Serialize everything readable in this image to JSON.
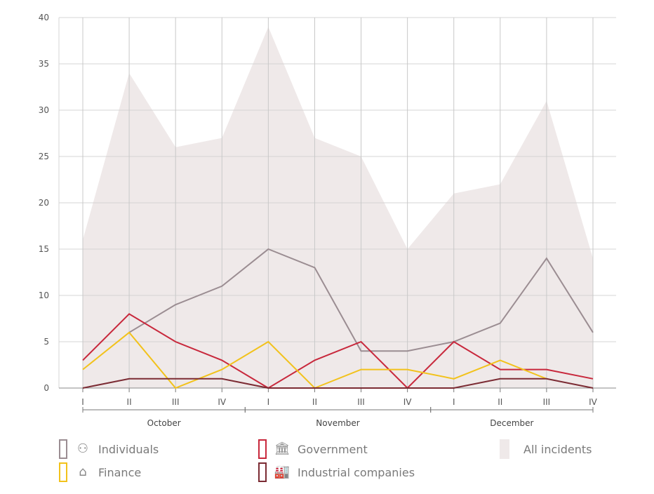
{
  "chart_data": {
    "type": "line",
    "title": "",
    "xlabel": "",
    "ylabel": "",
    "ylim": [
      0,
      40
    ],
    "yticks": [
      0,
      5,
      10,
      15,
      20,
      25,
      30,
      35,
      40
    ],
    "grid": true,
    "categories": [
      "I",
      "II",
      "III",
      "IV",
      "I",
      "II",
      "III",
      "IV",
      "I",
      "II",
      "III",
      "IV"
    ],
    "groups": [
      {
        "label": "October",
        "start": 0,
        "end": 3
      },
      {
        "label": "November",
        "start": 4,
        "end": 7
      },
      {
        "label": "December",
        "start": 8,
        "end": 11
      }
    ],
    "legend_position": "bottom",
    "series": [
      {
        "name": "All incidents",
        "kind": "area",
        "color": "#efe9e9",
        "values": [
          16,
          34,
          26,
          27,
          39,
          27,
          25,
          15,
          21,
          22,
          31,
          14
        ]
      },
      {
        "name": "Individuals",
        "kind": "line",
        "color": "#9b8d92",
        "icon": "people-network-icon",
        "values": [
          null,
          6,
          9,
          11,
          15,
          13,
          4,
          4,
          5,
          7,
          14,
          6
        ]
      },
      {
        "name": "Government",
        "kind": "line",
        "color": "#c8283c",
        "icon": "government-building-icon",
        "values": [
          3,
          8,
          5,
          3,
          0,
          3,
          5,
          0,
          5,
          2,
          2,
          1
        ]
      },
      {
        "name": "Finance",
        "kind": "line",
        "color": "#f2c21b",
        "icon": "bank-house-icon",
        "values": [
          2,
          6,
          0,
          2,
          5,
          0,
          2,
          2,
          1,
          3,
          1,
          null
        ]
      },
      {
        "name": "Industrial companies",
        "kind": "line",
        "color": "#7b2b33",
        "icon": "factory-icon",
        "values": [
          0,
          1,
          1,
          1,
          0,
          0,
          0,
          0,
          0,
          1,
          1,
          0
        ]
      }
    ]
  }
}
